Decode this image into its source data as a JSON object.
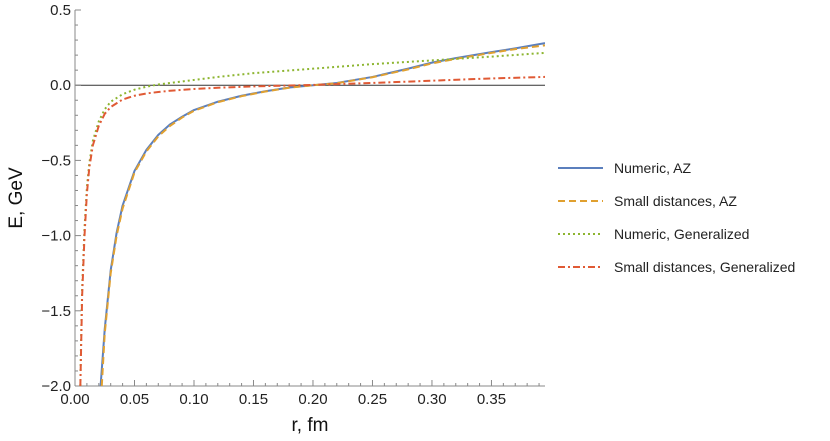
{
  "chart_data": {
    "type": "line",
    "xlabel": "r, fm",
    "ylabel": "E, GeV",
    "xlim": [
      0.0,
      0.395
    ],
    "ylim": [
      -2.0,
      0.5
    ],
    "x_ticks": [
      {
        "value": 0.0,
        "label": "0.00"
      },
      {
        "value": 0.05,
        "label": "0.05"
      },
      {
        "value": 0.1,
        "label": "0.10"
      },
      {
        "value": 0.15,
        "label": "0.15"
      },
      {
        "value": 0.2,
        "label": "0.20"
      },
      {
        "value": 0.25,
        "label": "0.25"
      },
      {
        "value": 0.3,
        "label": "0.30"
      },
      {
        "value": 0.35,
        "label": "0.35"
      }
    ],
    "y_ticks": [
      {
        "value": -2.0,
        "label": "−2.0"
      },
      {
        "value": -1.5,
        "label": "−1.5"
      },
      {
        "value": -1.0,
        "label": "−1.0"
      },
      {
        "value": -0.5,
        "label": "−0.5"
      },
      {
        "value": 0.0,
        "label": "0.0"
      },
      {
        "value": 0.5,
        "label": "0.5"
      }
    ],
    "zero_line": true,
    "grid": false,
    "legend_position": "right",
    "series": [
      {
        "name": "Numeric, AZ",
        "color": "#5b7fbd",
        "dash": "solid",
        "x": [
          0.0215,
          0.025,
          0.03,
          0.035,
          0.04,
          0.05,
          0.06,
          0.07,
          0.08,
          0.09,
          0.1,
          0.12,
          0.14,
          0.16,
          0.18,
          0.2,
          0.22,
          0.25,
          0.28,
          0.3,
          0.32,
          0.35,
          0.37,
          0.395
        ],
        "y": [
          -2.0,
          -1.62,
          -1.23,
          -0.98,
          -0.8,
          -0.57,
          -0.43,
          -0.33,
          -0.26,
          -0.21,
          -0.165,
          -0.11,
          -0.07,
          -0.04,
          -0.015,
          0.0,
          0.015,
          0.055,
          0.11,
          0.15,
          0.18,
          0.22,
          0.245,
          0.28
        ]
      },
      {
        "name": "Small distances, AZ",
        "color": "#e0a030",
        "dash": "dashed",
        "x": [
          0.0225,
          0.025,
          0.03,
          0.035,
          0.04,
          0.05,
          0.06,
          0.07,
          0.08,
          0.09,
          0.1,
          0.12,
          0.14,
          0.16,
          0.18,
          0.2,
          0.22,
          0.25,
          0.28,
          0.3,
          0.32,
          0.35,
          0.37,
          0.395
        ],
        "y": [
          -2.0,
          -1.65,
          -1.25,
          -1.0,
          -0.82,
          -0.58,
          -0.44,
          -0.34,
          -0.27,
          -0.215,
          -0.17,
          -0.113,
          -0.073,
          -0.042,
          -0.017,
          0.0,
          0.013,
          0.053,
          0.105,
          0.145,
          0.175,
          0.215,
          0.24,
          0.265
        ]
      },
      {
        "name": "Numeric, Generalized",
        "color": "#8db530",
        "dash": "dotted",
        "x": [
          0.0045,
          0.005,
          0.006,
          0.008,
          0.01,
          0.012,
          0.015,
          0.02,
          0.025,
          0.03,
          0.04,
          0.05,
          0.06,
          0.07,
          0.08,
          0.1,
          0.12,
          0.15,
          0.2,
          0.25,
          0.3,
          0.35,
          0.395
        ],
        "y": [
          -2.0,
          -1.75,
          -1.35,
          -0.95,
          -0.68,
          -0.52,
          -0.37,
          -0.24,
          -0.16,
          -0.11,
          -0.06,
          -0.03,
          -0.01,
          0.005,
          0.015,
          0.035,
          0.055,
          0.08,
          0.11,
          0.14,
          0.165,
          0.19,
          0.215
        ]
      },
      {
        "name": "Small distances, Generalized",
        "color": "#e05a35",
        "dash": "dashdot",
        "x": [
          0.0045,
          0.005,
          0.006,
          0.008,
          0.01,
          0.012,
          0.015,
          0.02,
          0.025,
          0.03,
          0.04,
          0.05,
          0.06,
          0.07,
          0.08,
          0.1,
          0.12,
          0.15,
          0.2,
          0.25,
          0.3,
          0.35,
          0.395
        ],
        "y": [
          -2.0,
          -1.8,
          -1.4,
          -1.0,
          -0.72,
          -0.55,
          -0.4,
          -0.27,
          -0.19,
          -0.145,
          -0.095,
          -0.07,
          -0.055,
          -0.045,
          -0.037,
          -0.025,
          -0.017,
          -0.008,
          0.002,
          0.015,
          0.03,
          0.045,
          0.055
        ]
      }
    ]
  }
}
